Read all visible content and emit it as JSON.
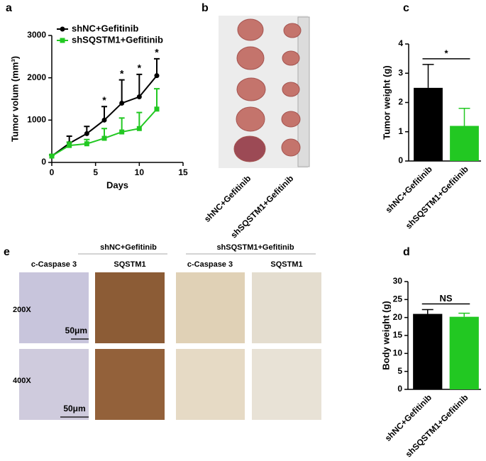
{
  "panel_labels": [
    "a",
    "b",
    "c",
    "e",
    "d"
  ],
  "chart_data": [
    {
      "type": "line",
      "xlabel": "Days",
      "ylabel": "Tumor volum (mm³)",
      "x": [
        0,
        2,
        4,
        6,
        8,
        10,
        12
      ],
      "series": [
        {
          "name": "shNC+Gefitinib",
          "color": "#000000",
          "values": [
            150,
            450,
            680,
            1000,
            1400,
            1550,
            2050
          ],
          "errors": [
            30,
            170,
            170,
            320,
            550,
            530,
            400
          ]
        },
        {
          "name": "shSQSTM1+Gefitinib",
          "color": "#22c822",
          "values": [
            150,
            400,
            440,
            570,
            720,
            800,
            1260
          ],
          "errors": [
            20,
            80,
            100,
            230,
            330,
            380,
            480
          ]
        }
      ],
      "xlim": [
        0,
        15
      ],
      "xticks": [
        0,
        5,
        10,
        15
      ],
      "ylim": [
        0,
        3000
      ],
      "yticks": [
        0,
        1000,
        2000,
        3000
      ],
      "annotations": [
        {
          "x": 6,
          "text": "*"
        },
        {
          "x": 8,
          "text": "*"
        },
        {
          "x": 10,
          "text": "*"
        },
        {
          "x": 12,
          "text": "*"
        }
      ],
      "legend": "upper left"
    },
    {
      "type": "bar",
      "ylabel": "Tumor weight (g)",
      "categories": [
        "shNC+Gefitinib",
        "shSQSTM1+Gefitinib"
      ],
      "values": [
        2.5,
        1.2
      ],
      "errors": [
        0.8,
        0.6
      ],
      "colors": [
        "#000000",
        "#22c822"
      ],
      "ylim": [
        0,
        4
      ],
      "yticks": [
        0,
        1,
        2,
        3,
        4
      ],
      "annotation": "*"
    },
    {
      "type": "bar",
      "ylabel": "Body weight (g)",
      "categories": [
        "shNC+Gefitinib",
        "shSQSTM1+Gefitinib"
      ],
      "values": [
        21,
        20.2
      ],
      "errors": [
        1.2,
        1.0
      ],
      "colors": [
        "#000000",
        "#22c822"
      ],
      "ylim": [
        0,
        30
      ],
      "yticks": [
        0,
        5,
        10,
        15,
        20,
        25,
        30
      ],
      "annotation": "NS"
    }
  ],
  "photo_b": {
    "labels": [
      "shNC+Gefitinib",
      "shSQSTM1+Gefitinib"
    ]
  },
  "panel_e": {
    "groups": [
      "shNC+Gefitinib",
      "shSQSTM1+Gefitinib"
    ],
    "columns": [
      "c-Caspase 3",
      "SQSTM1",
      "c-Caspase 3",
      "SQSTM1"
    ],
    "rows": [
      "200X",
      "400X"
    ],
    "scale_bars": [
      "50μm",
      "50μm"
    ]
  }
}
